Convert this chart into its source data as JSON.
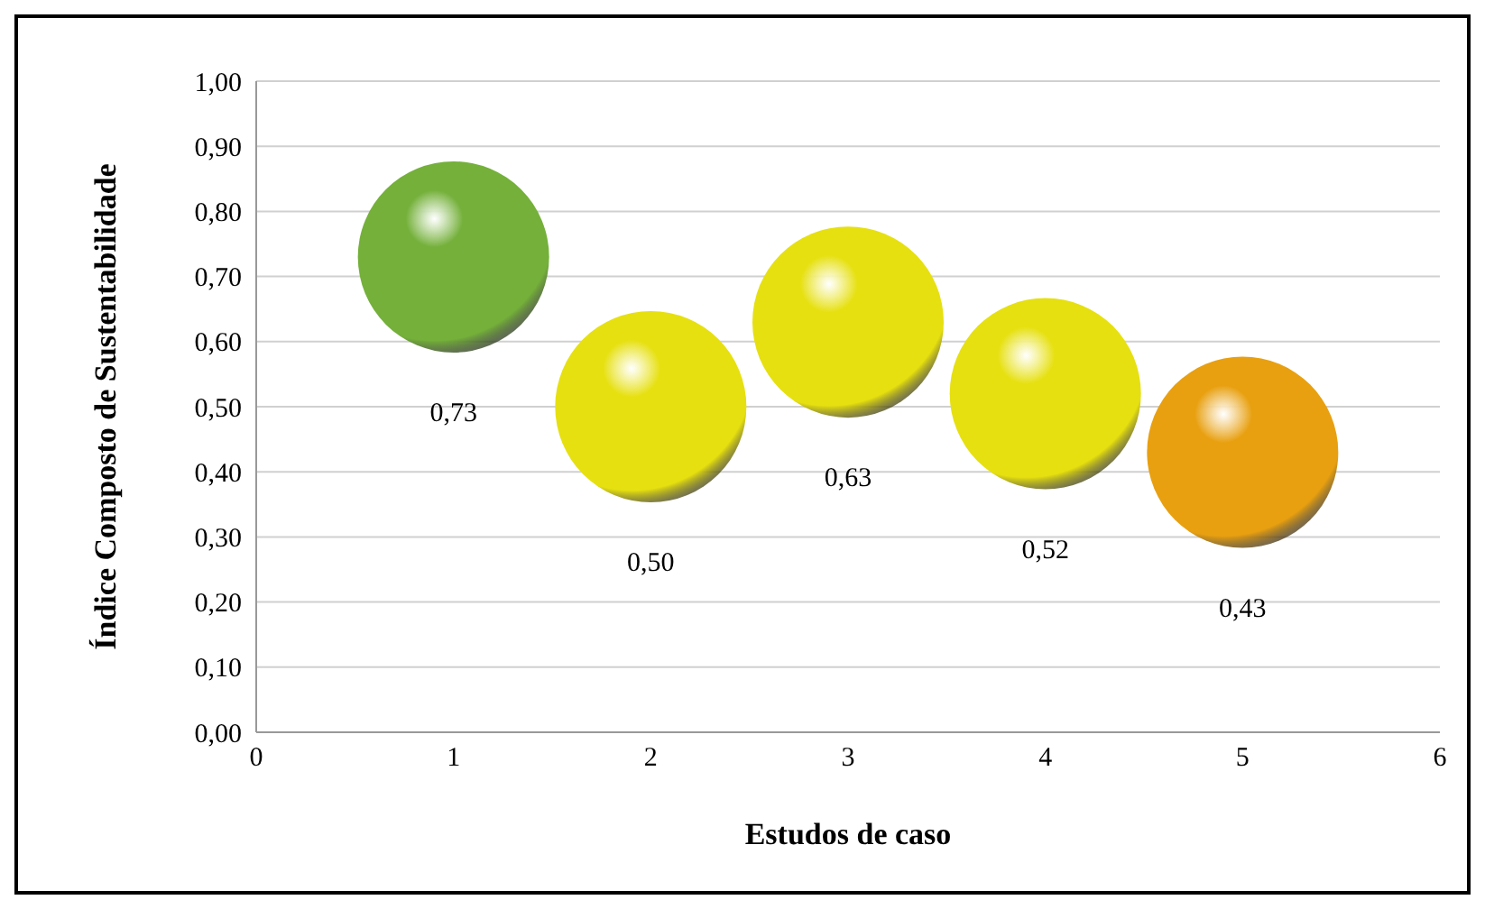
{
  "chart_data": {
    "type": "bubble",
    "xlabel": "Estudos de caso",
    "ylabel": "Índice Composto de Sustentabilidade",
    "x": [
      1,
      2,
      3,
      4,
      5
    ],
    "values": [
      0.73,
      0.5,
      0.63,
      0.52,
      0.43
    ],
    "sizes": [
      1,
      1,
      1,
      1,
      1
    ],
    "colors": [
      "#74b03a",
      "#e6e010",
      "#e6e010",
      "#e6e010",
      "#e8a010"
    ],
    "value_labels": [
      "0,73",
      "0,50",
      "0,63",
      "0,52",
      "0,43"
    ],
    "xlim": [
      0,
      6
    ],
    "xticks": [
      0,
      1,
      2,
      3,
      4,
      5,
      6
    ],
    "ylim": [
      0,
      1
    ],
    "yticks": [
      {
        "value": 0,
        "label": "0,00"
      },
      {
        "value": 0.1,
        "label": "0,10"
      },
      {
        "value": 0.2,
        "label": "0,20"
      },
      {
        "value": 0.3,
        "label": "0,30"
      },
      {
        "value": 0.4,
        "label": "0,40"
      },
      {
        "value": 0.5,
        "label": "0,50"
      },
      {
        "value": 0.6,
        "label": "0,60"
      },
      {
        "value": 0.7,
        "label": "0,70"
      },
      {
        "value": 0.8,
        "label": "0,80"
      },
      {
        "value": 0.9,
        "label": "0,90"
      },
      {
        "value": 1,
        "label": "1,00"
      }
    ],
    "grid": "y",
    "legend": false
  }
}
